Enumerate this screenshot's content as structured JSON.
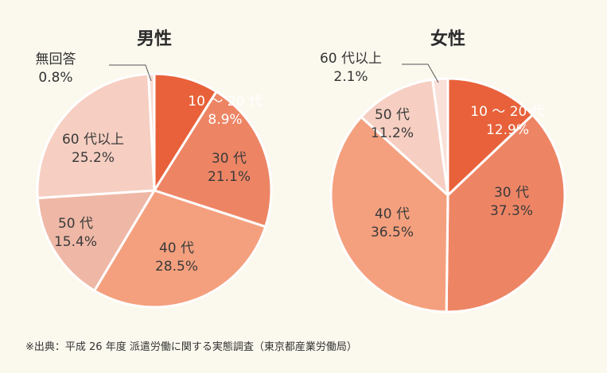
{
  "chart_data": [
    {
      "type": "pie",
      "title": "男性",
      "slices": [
        {
          "label": "10～20代",
          "value": 8.9,
          "name": "10 ～ 20 代",
          "pct": "8.9%",
          "color": "#e8613a"
        },
        {
          "label": "30代",
          "value": 21.1,
          "name": "30 代",
          "pct": "21.1%",
          "color": "#ed8565"
        },
        {
          "label": "40代",
          "value": 28.5,
          "name": "40 代",
          "pct": "28.5%",
          "color": "#f4a07e"
        },
        {
          "label": "50代",
          "value": 15.4,
          "name": "50 代",
          "pct": "15.4%",
          "color": "#efb8a6"
        },
        {
          "label": "60代以上",
          "value": 25.2,
          "name": "60 代以上",
          "pct": "25.2%",
          "color": "#f6cfc2"
        },
        {
          "label": "無回答",
          "value": 0.8,
          "name": "無回答",
          "pct": "0.8%",
          "color": "#f8ddd3"
        }
      ]
    },
    {
      "type": "pie",
      "title": "女性",
      "slices": [
        {
          "label": "10～20代",
          "value": 12.9,
          "name": "10 ～ 20 代",
          "pct": "12.9%",
          "color": "#e8613a"
        },
        {
          "label": "30代",
          "value": 37.3,
          "name": "30 代",
          "pct": "37.3%",
          "color": "#ed8565"
        },
        {
          "label": "40代",
          "value": 36.5,
          "name": "40 代",
          "pct": "36.5%",
          "color": "#f4a07e"
        },
        {
          "label": "50代",
          "value": 11.2,
          "name": "50 代",
          "pct": "11.2%",
          "color": "#f6cfc2"
        },
        {
          "label": "60代以上",
          "value": 2.1,
          "name": "60 代以上",
          "pct": "2.1%",
          "color": "#f9e0d8"
        }
      ]
    }
  ],
  "source_note": "※出典：平成 26 年度 派遣労働に関する実態調査（東京都産業労働局）"
}
